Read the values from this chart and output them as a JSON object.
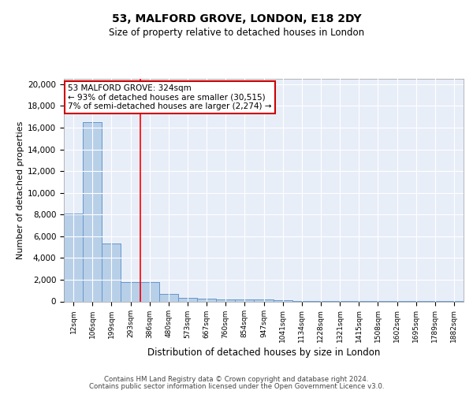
{
  "title1": "53, MALFORD GROVE, LONDON, E18 2DY",
  "title2": "Size of property relative to detached houses in London",
  "xlabel": "Distribution of detached houses by size in London",
  "ylabel": "Number of detached properties",
  "categories": [
    "12sqm",
    "106sqm",
    "199sqm",
    "293sqm",
    "386sqm",
    "480sqm",
    "573sqm",
    "667sqm",
    "760sqm",
    "854sqm",
    "947sqm",
    "1041sqm",
    "1134sqm",
    "1228sqm",
    "1321sqm",
    "1415sqm",
    "1508sqm",
    "1602sqm",
    "1695sqm",
    "1789sqm",
    "1882sqm"
  ],
  "values": [
    8100,
    16500,
    5300,
    1800,
    1800,
    700,
    300,
    250,
    200,
    150,
    150,
    100,
    50,
    50,
    40,
    30,
    25,
    20,
    15,
    10,
    10
  ],
  "bar_color": "#b8cfe8",
  "bar_edge_color": "#6699cc",
  "background_color": "#e8eef8",
  "grid_color": "#ffffff",
  "red_line_x": 3.5,
  "annotation_text": "53 MALFORD GROVE: 324sqm\n← 93% of detached houses are smaller (30,515)\n7% of semi-detached houses are larger (2,274) →",
  "annotation_box_color": "#ffffff",
  "annotation_box_edge": "#cc0000",
  "footnote1": "Contains HM Land Registry data © Crown copyright and database right 2024.",
  "footnote2": "Contains public sector information licensed under the Open Government Licence v3.0.",
  "ylim": [
    0,
    20500
  ],
  "yticks": [
    0,
    2000,
    4000,
    6000,
    8000,
    10000,
    12000,
    14000,
    16000,
    18000,
    20000
  ]
}
